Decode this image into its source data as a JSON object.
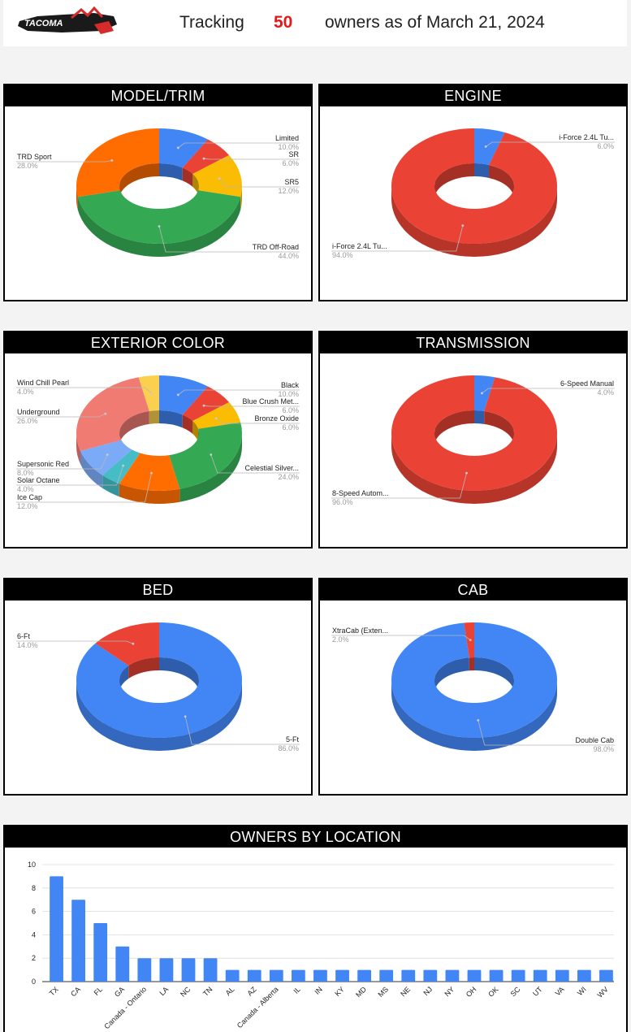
{
  "header": {
    "logo_text": "TACOMA",
    "prefix": "Tracking",
    "count": "50",
    "suffix": "owners as of March 21, 2024"
  },
  "chart_data": [
    {
      "id": "model",
      "type": "pie",
      "title": "MODEL/TRIM",
      "slices": [
        {
          "label": "Limited",
          "pct": "10.0%",
          "value": 10.0,
          "color": "#4285f4"
        },
        {
          "label": "SR",
          "pct": "6.0%",
          "value": 6.0,
          "color": "#ea4335"
        },
        {
          "label": "SR5",
          "pct": "12.0%",
          "value": 12.0,
          "color": "#fbbc04"
        },
        {
          "label": "TRD Off-Road",
          "pct": "44.0%",
          "value": 44.0,
          "color": "#34a853"
        },
        {
          "label": "TRD Sport",
          "pct": "28.0%",
          "value": 28.0,
          "color": "#ff6d01"
        }
      ]
    },
    {
      "id": "engine",
      "type": "pie",
      "title": "ENGINE",
      "slices": [
        {
          "label": "i-Force 2.4L Tu...",
          "pct": "6.0%",
          "value": 6.0,
          "color": "#4285f4"
        },
        {
          "label": "i-Force 2.4L Tu...",
          "pct": "94.0%",
          "value": 94.0,
          "color": "#ea4335"
        }
      ]
    },
    {
      "id": "color",
      "type": "pie",
      "title": "EXTERIOR COLOR",
      "slices": [
        {
          "label": "Black",
          "pct": "10.0%",
          "value": 10.0,
          "color": "#4285f4"
        },
        {
          "label": "Blue Crush Met...",
          "pct": "6.0%",
          "value": 6.0,
          "color": "#ea4335"
        },
        {
          "label": "Bronze Oxide",
          "pct": "6.0%",
          "value": 6.0,
          "color": "#fbbc04"
        },
        {
          "label": "Celestial Silver...",
          "pct": "24.0%",
          "value": 24.0,
          "color": "#34a853"
        },
        {
          "label": "Ice Cap",
          "pct": "12.0%",
          "value": 12.0,
          "color": "#ff6d01"
        },
        {
          "label": "Solar Octane",
          "pct": "4.0%",
          "value": 4.0,
          "color": "#46bdc6"
        },
        {
          "label": "Supersonic Red",
          "pct": "8.0%",
          "value": 8.0,
          "color": "#7baaf7"
        },
        {
          "label": "Underground",
          "pct": "26.0%",
          "value": 26.0,
          "color": "#f07b72"
        },
        {
          "label": "Wind Chill Pearl",
          "pct": "4.0%",
          "value": 4.0,
          "color": "#fcd04f"
        }
      ]
    },
    {
      "id": "transmission",
      "type": "pie",
      "title": "TRANSMISSION",
      "slices": [
        {
          "label": "6-Speed Manual",
          "pct": "4.0%",
          "value": 4.0,
          "color": "#4285f4"
        },
        {
          "label": "8-Speed Autom...",
          "pct": "96.0%",
          "value": 96.0,
          "color": "#ea4335"
        }
      ]
    },
    {
      "id": "bed",
      "type": "pie",
      "title": "BED",
      "slices": [
        {
          "label": "5-Ft",
          "pct": "86.0%",
          "value": 86.0,
          "color": "#4285f4"
        },
        {
          "label": "6-Ft",
          "pct": "14.0%",
          "value": 14.0,
          "color": "#ea4335"
        }
      ]
    },
    {
      "id": "cab",
      "type": "pie",
      "title": "CAB",
      "slices": [
        {
          "label": "Double Cab",
          "pct": "98.0%",
          "value": 98.0,
          "color": "#4285f4"
        },
        {
          "label": "XtraCab (Exten...",
          "pct": "2.0%",
          "value": 2.0,
          "color": "#ea4335"
        }
      ]
    },
    {
      "id": "location",
      "type": "bar",
      "title": "OWNERS BY LOCATION",
      "categories": [
        "TX",
        "CA",
        "FL",
        "GA",
        "Canada - Ontario",
        "LA",
        "NC",
        "TN",
        "AL",
        "AZ",
        "Canada - Alberta",
        "IL",
        "IN",
        "KY",
        "MD",
        "MS",
        "NE",
        "NJ",
        "NY",
        "OH",
        "OK",
        "SC",
        "UT",
        "VA",
        "WI",
        "WV"
      ],
      "values": [
        9,
        7,
        5,
        3,
        2,
        2,
        2,
        2,
        1,
        1,
        1,
        1,
        1,
        1,
        1,
        1,
        1,
        1,
        1,
        1,
        1,
        1,
        1,
        1,
        1,
        1
      ],
      "ylim": [
        0,
        10
      ],
      "yticks": [
        "0",
        "2",
        "4",
        "6",
        "8",
        "10"
      ],
      "color": "#4285f4",
      "grid": true
    }
  ]
}
